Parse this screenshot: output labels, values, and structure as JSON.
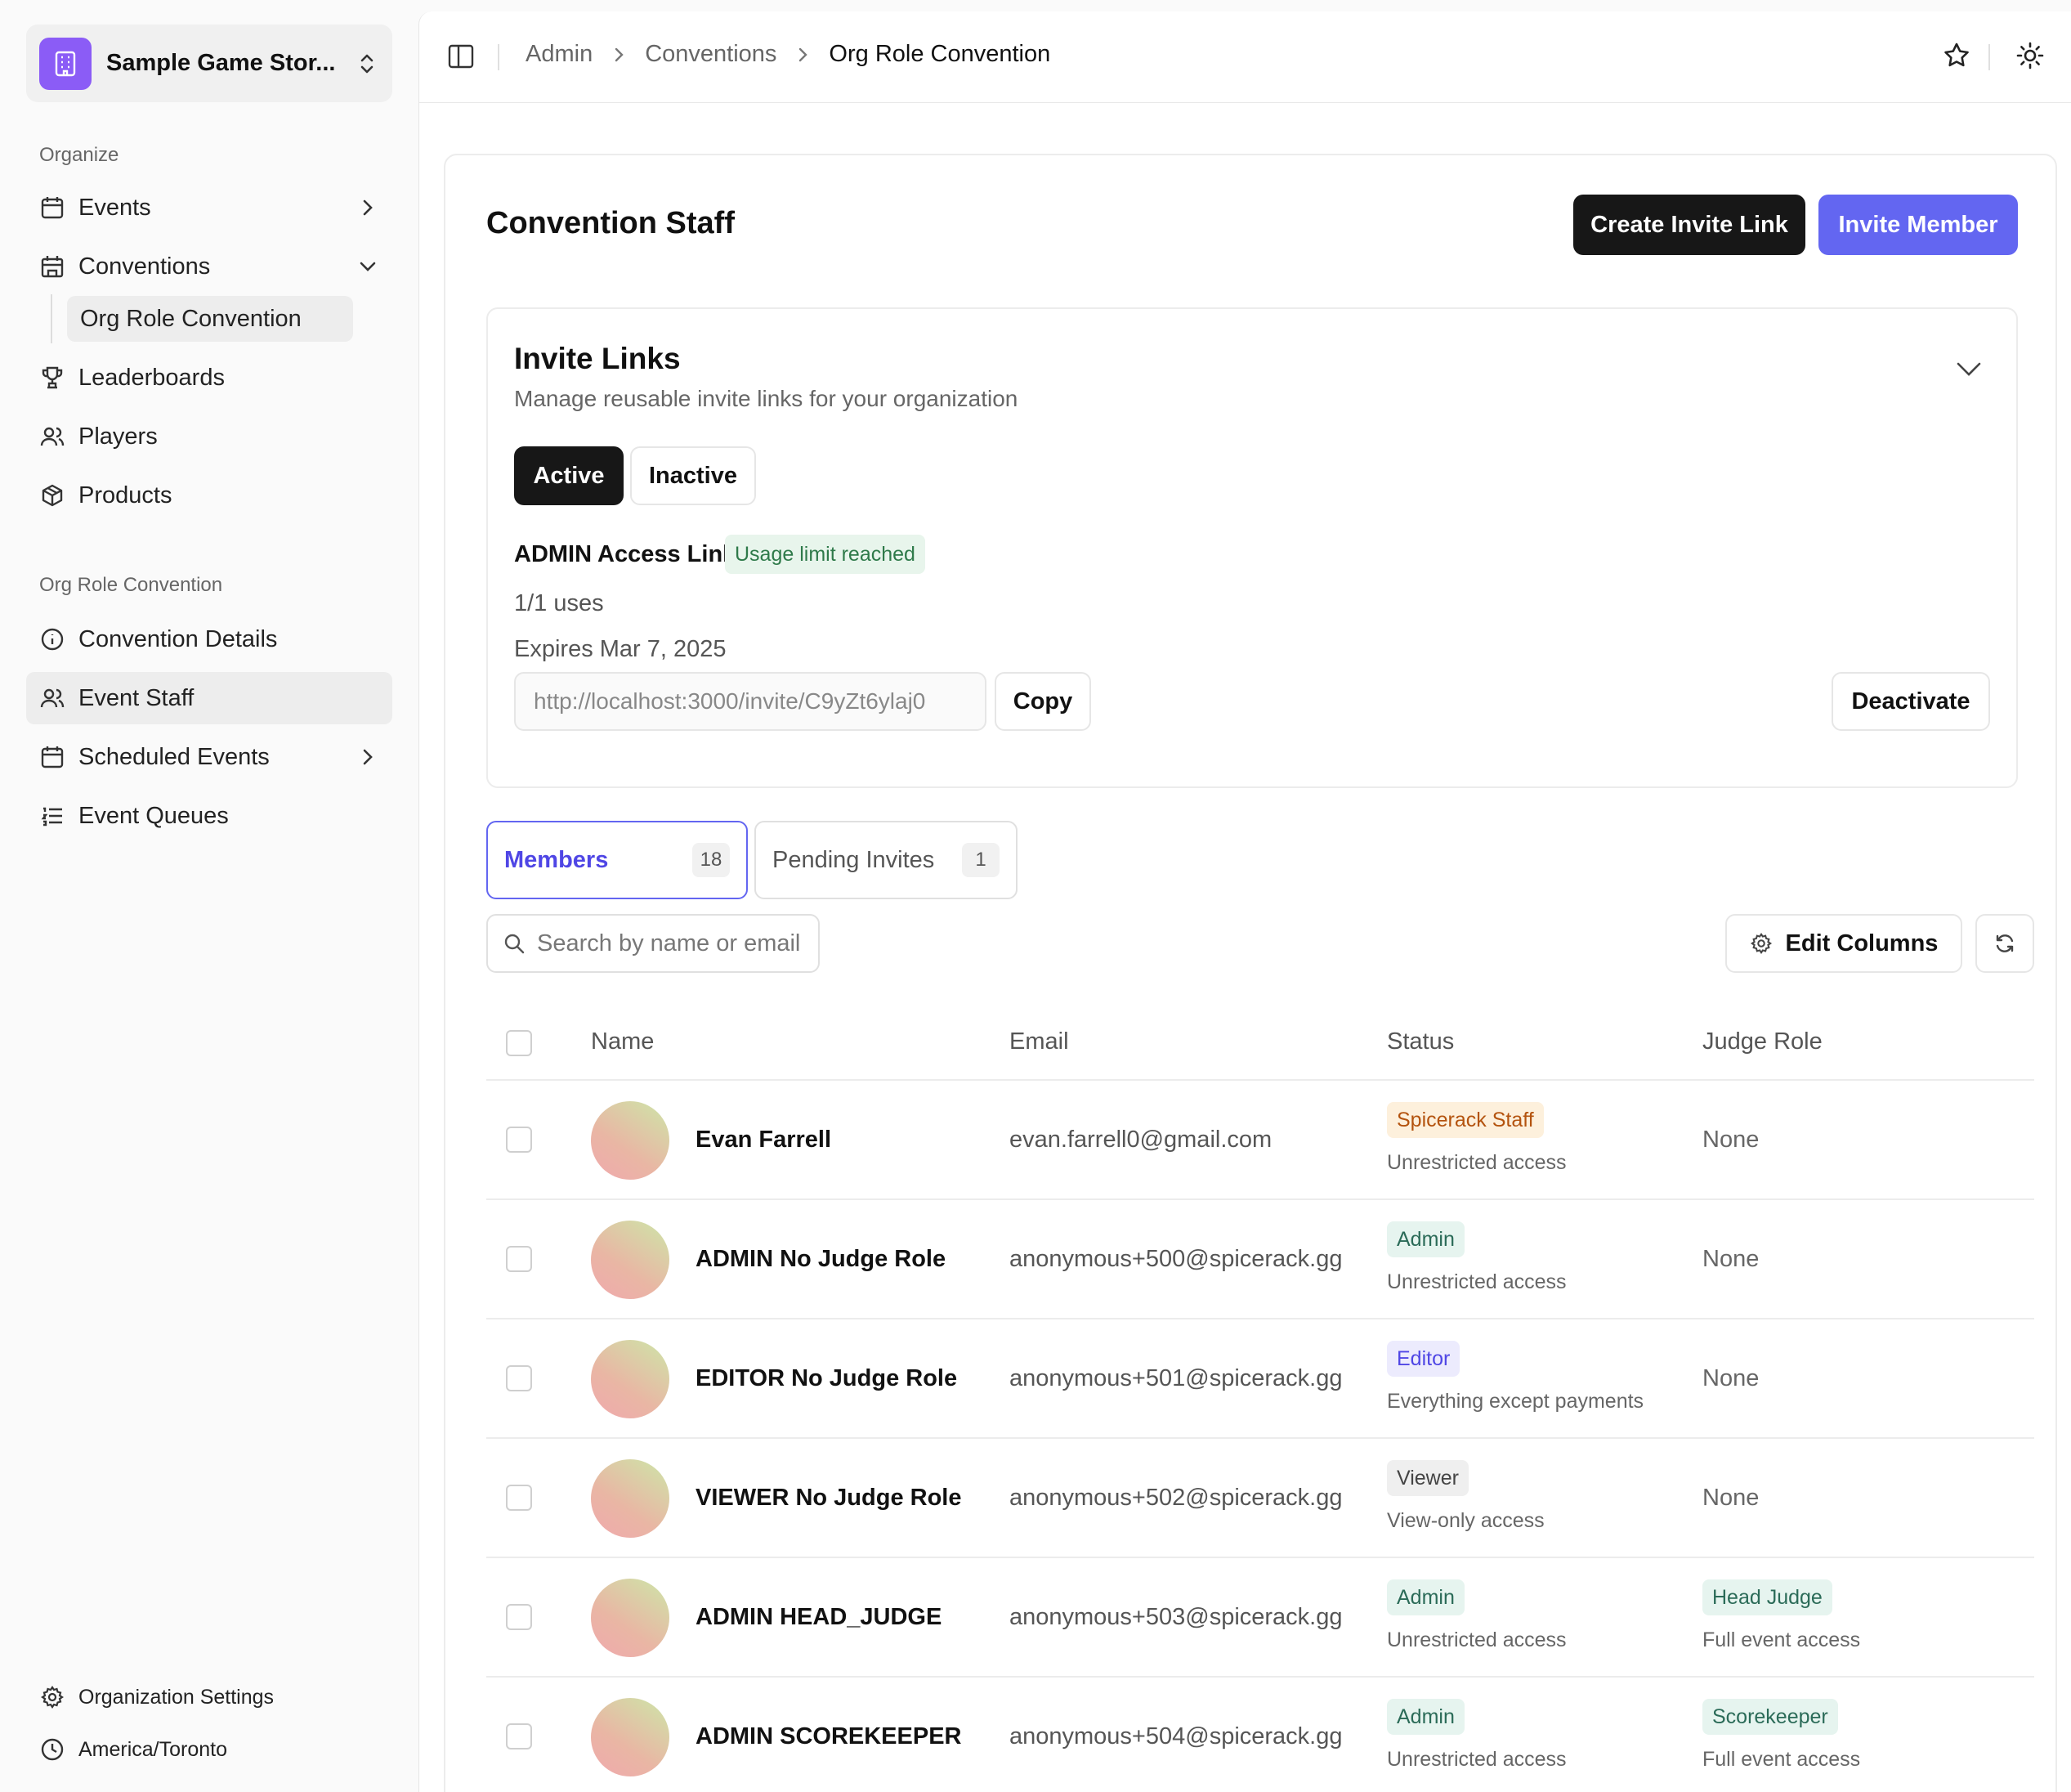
{
  "sidebar": {
    "org_name": "Sample Game Stor...",
    "sections": {
      "organize": "Organize",
      "convention": "Org Role Convention"
    },
    "items": {
      "events": "Events",
      "conventions": "Conventions",
      "conventions_sub": "Org Role Convention",
      "leaderboards": "Leaderboards",
      "players": "Players",
      "products": "Products",
      "convention_details": "Convention Details",
      "event_staff": "Event Staff",
      "scheduled_events": "Scheduled Events",
      "event_queues": "Event Queues"
    },
    "footer": {
      "settings": "Organization Settings",
      "timezone": "America/Toronto"
    }
  },
  "breadcrumb": [
    "Admin",
    "Conventions",
    "Org Role Convention"
  ],
  "page": {
    "title": "Convention Staff",
    "create_invite_link": "Create Invite Link",
    "invite_member": "Invite Member"
  },
  "invite_links": {
    "title": "Invite Links",
    "subtitle": "Manage reusable invite links for your organization",
    "toggle_active": "Active",
    "toggle_inactive": "Inactive",
    "link": {
      "name": "ADMIN Access Link",
      "badge": "Usage limit reached",
      "uses": "1/1 uses",
      "expires": "Expires Mar 7, 2025",
      "url": "http://localhost:3000/invite/C9yZt6ylaj0",
      "copy": "Copy",
      "deactivate": "Deactivate"
    }
  },
  "tabs": {
    "members": {
      "label": "Members",
      "count": "18"
    },
    "pending": {
      "label": "Pending Invites",
      "count": "1"
    }
  },
  "toolbar": {
    "search_placeholder": "Search by name or email",
    "edit_columns": "Edit Columns"
  },
  "table": {
    "headers": {
      "name": "Name",
      "email": "Email",
      "status": "Status",
      "judge_role": "Judge Role"
    },
    "rows": [
      {
        "name": "Evan Farrell",
        "email": "evan.farrell0@gmail.com",
        "status": "Spicerack Staff",
        "status_kind": "staff",
        "status_desc": "Unrestricted access",
        "judge_role": "None",
        "judge_desc": ""
      },
      {
        "name": "ADMIN No Judge Role",
        "email": "anonymous+500@spicerack.gg",
        "status": "Admin",
        "status_kind": "admin",
        "status_desc": "Unrestricted access",
        "judge_role": "None",
        "judge_desc": ""
      },
      {
        "name": "EDITOR No Judge Role",
        "email": "anonymous+501@spicerack.gg",
        "status": "Editor",
        "status_kind": "editor",
        "status_desc": "Everything except payments",
        "judge_role": "None",
        "judge_desc": ""
      },
      {
        "name": "VIEWER No Judge Role",
        "email": "anonymous+502@spicerack.gg",
        "status": "Viewer",
        "status_kind": "viewer",
        "status_desc": "View-only access",
        "judge_role": "None",
        "judge_desc": ""
      },
      {
        "name": "ADMIN HEAD_JUDGE",
        "email": "anonymous+503@spicerack.gg",
        "status": "Admin",
        "status_kind": "admin",
        "status_desc": "Unrestricted access",
        "judge_role": "Head Judge",
        "judge_desc": "Full event access"
      },
      {
        "name": "ADMIN SCOREKEEPER",
        "email": "anonymous+504@spicerack.gg",
        "status": "Admin",
        "status_kind": "admin",
        "status_desc": "Unrestricted access",
        "judge_role": "Scorekeeper",
        "judge_desc": "Full event access"
      }
    ]
  },
  "colors": {
    "accent": "#6366f1",
    "org_logo": "#8b5cf6",
    "dark_button": "#171717"
  }
}
